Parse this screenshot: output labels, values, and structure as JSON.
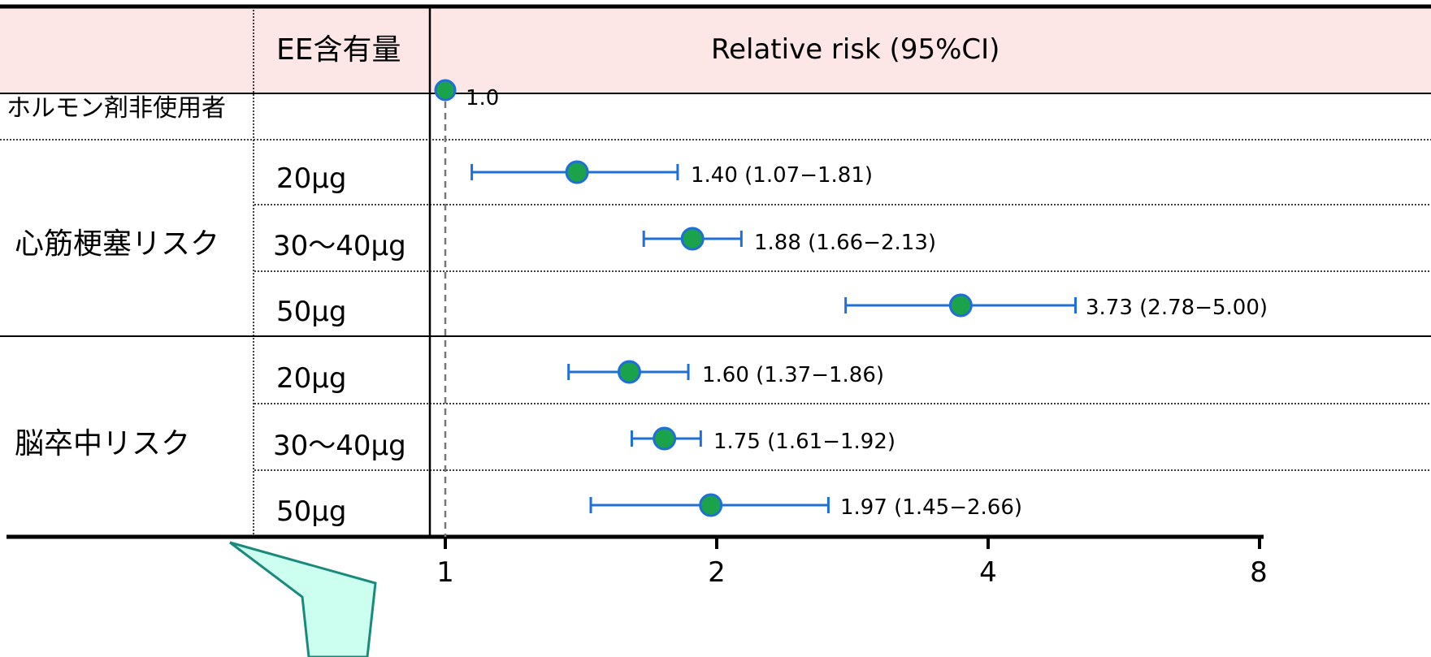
{
  "chart_data": {
    "type": "forest",
    "header": {
      "dose_column": "EE含有量",
      "rr_column": "Relative risk (95%CI)"
    },
    "reference": {
      "label": "ホルモン剤非使用者",
      "estimate": 1.0,
      "display": "1.0"
    },
    "groups": [
      {
        "name": "心筋梗塞リスク",
        "rows": [
          {
            "dose": "20μg",
            "estimate": 1.4,
            "lower": 1.07,
            "upper": 1.81,
            "display": "1.40 (1.07−1.81)"
          },
          {
            "dose": "30〜40μg",
            "estimate": 1.88,
            "lower": 1.66,
            "upper": 2.13,
            "display": "1.88 (1.66−2.13)"
          },
          {
            "dose": "50μg",
            "estimate": 3.73,
            "lower": 2.78,
            "upper": 5.0,
            "display": "3.73 (2.78−5.00)"
          }
        ]
      },
      {
        "name": "脳卒中リスク",
        "rows": [
          {
            "dose": "20μg",
            "estimate": 1.6,
            "lower": 1.37,
            "upper": 1.86,
            "display": "1.60 (1.37−1.86)"
          },
          {
            "dose": "30〜40μg",
            "estimate": 1.75,
            "lower": 1.61,
            "upper": 1.92,
            "display": "1.75 (1.61−1.92)"
          },
          {
            "dose": "50μg",
            "estimate": 1.97,
            "lower": 1.45,
            "upper": 2.66,
            "display": "1.97 (1.45−2.66)"
          }
        ]
      }
    ],
    "x_axis": {
      "scale": "log2",
      "ticks": [
        1,
        2,
        4,
        8
      ],
      "tick_labels": [
        "1",
        "2",
        "4",
        "8"
      ],
      "range": [
        1,
        8
      ]
    },
    "colors": {
      "point_fill": "#1aa34a",
      "point_stroke": "#1f6fd6",
      "ci_line": "#1f6fd6",
      "header_background": "#fde6e6",
      "callout_fill": "#ccfff0",
      "callout_stroke": "#1a8a7a"
    }
  }
}
